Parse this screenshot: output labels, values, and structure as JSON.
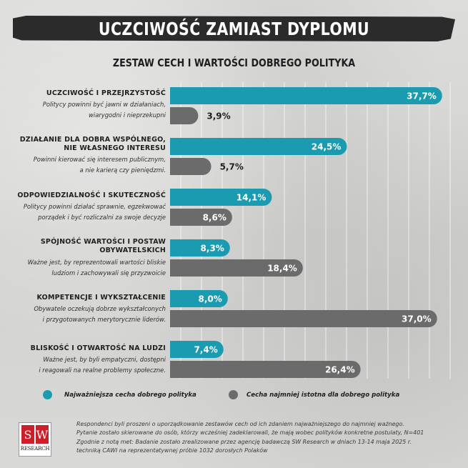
{
  "header": {
    "title": "UCZCIWOŚĆ ZAMIAST DYPLOMU",
    "subtitle": "ZESTAW CECH I WARTOŚCI DOBREGO POLITYKA"
  },
  "categories": [
    {
      "title_lines": [
        "UCZCIWOŚĆ I PRZEJRZYSTOŚĆ"
      ],
      "desc_lines": [
        "Politycy powinni być jawni w działaniach,",
        "wiarygodni i nieprzekupni"
      ]
    },
    {
      "title_lines": [
        "DZIAŁANIE DLA DOBRA WSPÓLNEGO,",
        "NIE WŁASNEGO INTERESU"
      ],
      "desc_lines": [
        "Powinni kierować się interesem publicznym,",
        "a nie karierą czy pieniędzmi."
      ]
    },
    {
      "title_lines": [
        "ODPOWIEDZIALNOŚĆ I SKUTECZNOŚĆ"
      ],
      "desc_lines": [
        "Politycy powinni działać sprawnie, egzekwować",
        "porządek i być rozliczalni za swoje decyzje"
      ]
    },
    {
      "title_lines": [
        "SPÓJNOŚĆ WARTOŚCI I POSTAW",
        "OBYWATELSKICH"
      ],
      "desc_lines": [
        "Ważne jest, by reprezentowali wartości bliskie",
        "ludziom i zachowywali się przyzwoicie"
      ]
    },
    {
      "title_lines": [
        "KOMPETENCJE I WYKSZTAŁCENIE"
      ],
      "desc_lines": [
        "Obywatele oczekują dobrze wykształconych",
        "i przygotowanych merytorycznie liderów."
      ]
    },
    {
      "title_lines": [
        "BLISKOŚĆ I OTWARTOŚĆ NA LUDZI"
      ],
      "desc_lines": [
        "Ważne jest, by byli empatyczni, dostępni",
        "i reagowali na realne problemy społeczne."
      ]
    }
  ],
  "chart_data": {
    "type": "bar",
    "orientation": "horizontal",
    "title": "ZESTAW CECH I WARTOŚCI DOBREGO POLITYKA",
    "categories": [
      "UCZCIWOŚĆ I PRZEJRZYSTOŚĆ",
      "DZIAŁANIE DLA DOBRA WSPÓLNEGO, NIE WŁASNEGO INTERESU",
      "ODPOWIEDZIALNOŚĆ I SKUTECZNOŚĆ",
      "SPÓJNOŚĆ WARTOŚCI I POSTAW OBYWATELSKICH",
      "KOMPETENCJE I WYKSZTAŁCENIE",
      "BLISKOŚĆ I OTWARTOŚĆ NA LUDZI"
    ],
    "series": [
      {
        "name": "Najważniejsza cecha dobrego polityka",
        "color": "#1a9bb0",
        "values": [
          37.7,
          24.5,
          14.1,
          8.3,
          8.0,
          7.4
        ],
        "labels": [
          "37,7%",
          "24,5%",
          "14,1%",
          "8,3%",
          "8,0%",
          "7,4%"
        ]
      },
      {
        "name": "Cecha najmniej istotna dla dobrego polityka",
        "color": "#6b6b6b",
        "values": [
          3.9,
          5.7,
          8.6,
          18.4,
          37.0,
          26.4
        ],
        "labels": [
          "3,9%",
          "5,7%",
          "8,6%",
          "18,4%",
          "37,0%",
          "26,4%"
        ]
      }
    ],
    "xlim": [
      0,
      40
    ],
    "unit": "%"
  },
  "legend": {
    "primary_label": "Najważniejsza cecha dobrego polityka",
    "secondary_label": "Cecha najmniej istotna dla dobrego polityka",
    "primary_color": "#1a9bb0",
    "secondary_color": "#6b6b6b"
  },
  "note": {
    "lines": [
      "Respondenci byli proszeni o uporządkowanie zestawów cech od ich zdaniem najważniejszego do najmniej ważnego.",
      "Pytanie zostało skierowane do osób, którzy wcześniej zadeklarowali, że mają wobec polityków konkretne postulaty, N=401",
      "Zgodnie z notą met: Badanie zostało zrealizowane przez agencję badawczą SW Research w dniach 13-14 maja 2025 r.",
      "techniką CAWI na reprezentatywnej próbie 1032 dorosłych Polaków"
    ]
  },
  "logo": {
    "letter_s": "S",
    "letter_w": "W",
    "caption": "RESEARCH"
  }
}
